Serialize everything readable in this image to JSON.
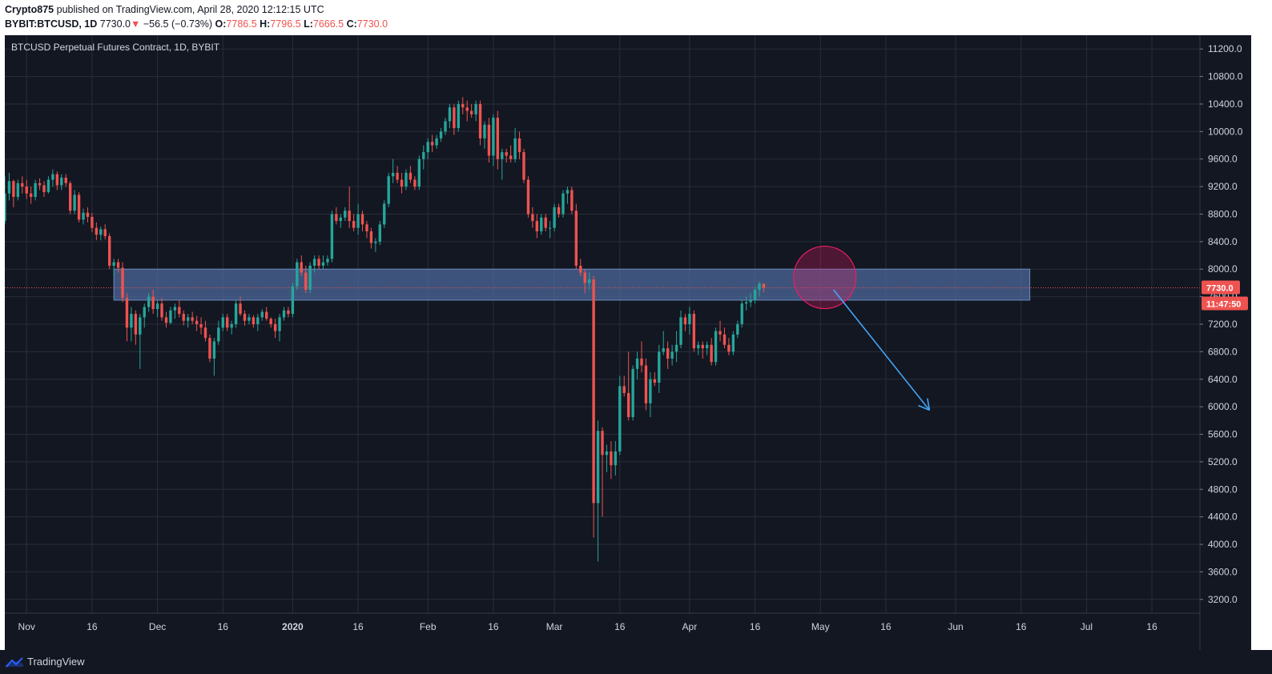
{
  "header": {
    "author": "Crypto875",
    "published_text": " published on TradingView.com, April 28, 2020 12:12:15 UTC",
    "symbol": "BYBIT:BTCUSD, 1D",
    "last": "7730.0",
    "down_arrow": "▼",
    "change": "−56.5 (−0.73%)",
    "o_label": "O:",
    "o_value": "7786.5",
    "h_label": "H:",
    "h_value": "7796.5",
    "l_label": "L:",
    "l_value": "7666.5",
    "c_label": "C:",
    "c_value": "7730.0"
  },
  "footer": {
    "brand": "TradingView"
  },
  "colors": {
    "background": "#131722",
    "grid": "#2a2e39",
    "up": "#26a69a",
    "down": "#ef5350",
    "zone": "#4f6b9e",
    "circle": "#e91e63",
    "arrow": "#42a5f5"
  },
  "chart_data": {
    "type": "candlestick",
    "title": "BTCUSD Perpetual Futures Contract, 1D, BYBIT",
    "symbol": "BYBIT:BTCUSD",
    "interval": "1D",
    "ylim": [
      3000,
      11400
    ],
    "y_ticks": [
      "11200.0",
      "10800.0",
      "10400.0",
      "10000.0",
      "9600.0",
      "9200.0",
      "8800.0",
      "8400.0",
      "8000.0",
      "7600.0",
      "7200.0",
      "6800.0",
      "6400.0",
      "6000.0",
      "5600.0",
      "5200.0",
      "4800.0",
      "4400.0",
      "4000.0",
      "3600.0",
      "3200.0"
    ],
    "x_ticks": [
      {
        "label": "Nov",
        "day": 0
      },
      {
        "label": "16",
        "day": 15
      },
      {
        "label": "Dec",
        "day": 30
      },
      {
        "label": "16",
        "day": 45
      },
      {
        "label": "2020",
        "day": 61
      },
      {
        "label": "16",
        "day": 76
      },
      {
        "label": "Feb",
        "day": 92
      },
      {
        "label": "16",
        "day": 107
      },
      {
        "label": "Mar",
        "day": 121
      },
      {
        "label": "16",
        "day": 136
      },
      {
        "label": "Apr",
        "day": 152
      },
      {
        "label": "16",
        "day": 167
      },
      {
        "label": "May",
        "day": 182
      },
      {
        "label": "16",
        "day": 197
      },
      {
        "label": "Jun",
        "day": 213
      },
      {
        "label": "16",
        "day": 228
      },
      {
        "label": "Jul",
        "day": 243
      },
      {
        "label": "16",
        "day": 258
      }
    ],
    "day_range": [
      -5,
      269
    ],
    "start_day": -5,
    "ohlc": [
      [
        8700,
        9350,
        8650,
        9100
      ],
      [
        9100,
        9400,
        9000,
        9280
      ],
      [
        9280,
        9300,
        8900,
        9050
      ],
      [
        9050,
        9300,
        9000,
        9250
      ],
      [
        9250,
        9350,
        9100,
        9200
      ],
      [
        9200,
        9300,
        9020,
        9100
      ],
      [
        9100,
        9200,
        8950,
        9050
      ],
      [
        9050,
        9300,
        9000,
        9250
      ],
      [
        9250,
        9320,
        9150,
        9220
      ],
      [
        9220,
        9280,
        9050,
        9120
      ],
      [
        9120,
        9350,
        9100,
        9300
      ],
      [
        9300,
        9450,
        9200,
        9380
      ],
      [
        9380,
        9420,
        9150,
        9220
      ],
      [
        9220,
        9380,
        9150,
        9330
      ],
      [
        9330,
        9380,
        9200,
        9250
      ],
      [
        9250,
        9280,
        8800,
        8850
      ],
      [
        8850,
        9150,
        8800,
        9080
      ],
      [
        9080,
        9120,
        8680,
        8720
      ],
      [
        8720,
        8880,
        8650,
        8820
      ],
      [
        8820,
        8900,
        8680,
        8760
      ],
      [
        8760,
        8820,
        8540,
        8600
      ],
      [
        8600,
        8680,
        8420,
        8500
      ],
      [
        8500,
        8620,
        8420,
        8580
      ],
      [
        8580,
        8650,
        8430,
        8480
      ],
      [
        8480,
        8520,
        8000,
        8050
      ],
      [
        8050,
        8150,
        7900,
        8100
      ],
      [
        8100,
        8150,
        7950,
        8020
      ],
      [
        8020,
        8100,
        7520,
        7580
      ],
      [
        7580,
        7650,
        6950,
        7150
      ],
      [
        7150,
        7450,
        6950,
        7350
      ],
      [
        7350,
        7400,
        6900,
        7050
      ],
      [
        7050,
        7350,
        6550,
        7300
      ],
      [
        7300,
        7500,
        7150,
        7450
      ],
      [
        7450,
        7650,
        7380,
        7600
      ],
      [
        7600,
        7700,
        7350,
        7420
      ],
      [
        7420,
        7550,
        7300,
        7500
      ],
      [
        7500,
        7580,
        7250,
        7300
      ],
      [
        7300,
        7380,
        7150,
        7220
      ],
      [
        7220,
        7450,
        7200,
        7400
      ],
      [
        7400,
        7500,
        7280,
        7450
      ],
      [
        7450,
        7550,
        7300,
        7350
      ],
      [
        7350,
        7400,
        7180,
        7250
      ],
      [
        7250,
        7350,
        7150,
        7300
      ],
      [
        7300,
        7380,
        7200,
        7250
      ],
      [
        7250,
        7320,
        7100,
        7200
      ],
      [
        7200,
        7300,
        7050,
        7150
      ],
      [
        7150,
        7250,
        6950,
        7000
      ],
      [
        7000,
        7050,
        6650,
        6700
      ],
      [
        6700,
        7000,
        6450,
        6950
      ],
      [
        6950,
        7250,
        6900,
        7150
      ],
      [
        7150,
        7350,
        7100,
        7300
      ],
      [
        7300,
        7350,
        7100,
        7150
      ],
      [
        7150,
        7250,
        7050,
        7200
      ],
      [
        7200,
        7550,
        7150,
        7500
      ],
      [
        7500,
        7600,
        7320,
        7350
      ],
      [
        7350,
        7400,
        7180,
        7250
      ],
      [
        7250,
        7350,
        7200,
        7300
      ],
      [
        7300,
        7330,
        7150,
        7200
      ],
      [
        7200,
        7350,
        7100,
        7300
      ],
      [
        7300,
        7420,
        7250,
        7380
      ],
      [
        7380,
        7450,
        7250,
        7280
      ],
      [
        7280,
        7300,
        7150,
        7200
      ],
      [
        7200,
        7280,
        7000,
        7100
      ],
      [
        7100,
        7350,
        6950,
        7300
      ],
      [
        7300,
        7450,
        7250,
        7400
      ],
      [
        7400,
        7450,
        7300,
        7350
      ],
      [
        7350,
        7800,
        7300,
        7750
      ],
      [
        7750,
        8150,
        7700,
        8100
      ],
      [
        8100,
        8200,
        7900,
        7950
      ],
      [
        7950,
        8050,
        7650,
        7700
      ],
      [
        7700,
        8100,
        7650,
        8050
      ],
      [
        8050,
        8200,
        7950,
        8150
      ],
      [
        8150,
        8200,
        8000,
        8050
      ],
      [
        8050,
        8200,
        8000,
        8100
      ],
      [
        8100,
        8200,
        8050,
        8150
      ],
      [
        8150,
        8850,
        8100,
        8800
      ],
      [
        8800,
        8900,
        8650,
        8700
      ],
      [
        8700,
        8800,
        8600,
        8750
      ],
      [
        8750,
        8900,
        8700,
        8850
      ],
      [
        8850,
        9200,
        8600,
        8700
      ],
      [
        8700,
        8800,
        8550,
        8600
      ],
      [
        8600,
        8950,
        8500,
        8800
      ],
      [
        8800,
        8850,
        8550,
        8650
      ],
      [
        8650,
        8700,
        8450,
        8550
      ],
      [
        8550,
        8600,
        8300,
        8380
      ],
      [
        8380,
        8450,
        8250,
        8400
      ],
      [
        8400,
        8700,
        8350,
        8650
      ],
      [
        8650,
        9000,
        8600,
        8950
      ],
      [
        8950,
        9400,
        8900,
        9350
      ],
      [
        9350,
        9600,
        9250,
        9400
      ],
      [
        9400,
        9500,
        9250,
        9300
      ],
      [
        9300,
        9400,
        9100,
        9200
      ],
      [
        9200,
        9450,
        9150,
        9400
      ],
      [
        9400,
        9500,
        9250,
        9300
      ],
      [
        9300,
        9350,
        9150,
        9200
      ],
      [
        9200,
        9650,
        9150,
        9600
      ],
      [
        9600,
        9800,
        9450,
        9700
      ],
      [
        9700,
        9900,
        9600,
        9850
      ],
      [
        9850,
        9950,
        9700,
        9800
      ],
      [
        9800,
        9950,
        9750,
        9900
      ],
      [
        9900,
        10050,
        9850,
        10000
      ],
      [
        10000,
        10200,
        9950,
        10150
      ],
      [
        10150,
        10400,
        10050,
        10350
      ],
      [
        10350,
        10400,
        9950,
        10050
      ],
      [
        10050,
        10450,
        10000,
        10400
      ],
      [
        10400,
        10500,
        10250,
        10350
      ],
      [
        10350,
        10450,
        10150,
        10300
      ],
      [
        10300,
        10400,
        10200,
        10250
      ],
      [
        10250,
        10450,
        10150,
        10400
      ],
      [
        10400,
        10450,
        9800,
        9900
      ],
      [
        9900,
        10150,
        9750,
        10100
      ],
      [
        10100,
        10200,
        9550,
        9650
      ],
      [
        9650,
        10250,
        9500,
        10200
      ],
      [
        10200,
        10300,
        9450,
        9600
      ],
      [
        9600,
        9750,
        9300,
        9700
      ],
      [
        9700,
        9750,
        9550,
        9650
      ],
      [
        9650,
        9800,
        9550,
        9600
      ],
      [
        9600,
        10050,
        9550,
        9900
      ],
      [
        9900,
        10000,
        9600,
        9700
      ],
      [
        9700,
        9750,
        9250,
        9300
      ],
      [
        9300,
        9350,
        8750,
        8800
      ],
      [
        8800,
        8900,
        8600,
        8700
      ],
      [
        8700,
        8800,
        8450,
        8550
      ],
      [
        8550,
        8800,
        8500,
        8750
      ],
      [
        8750,
        8800,
        8550,
        8600
      ],
      [
        8600,
        8700,
        8450,
        8600
      ],
      [
        8600,
        8950,
        8550,
        8900
      ],
      [
        8900,
        8950,
        8750,
        8800
      ],
      [
        8800,
        9150,
        8750,
        9100
      ],
      [
        9100,
        9200,
        8950,
        9150
      ],
      [
        9150,
        9200,
        8800,
        8850
      ],
      [
        8850,
        8950,
        8000,
        8050
      ],
      [
        8050,
        8150,
        7900,
        7950
      ],
      [
        7950,
        8000,
        7650,
        7800
      ],
      [
        7800,
        7950,
        7700,
        7850
      ],
      [
        7850,
        7900,
        4100,
        4600
      ],
      [
        4600,
        5800,
        3750,
        5650
      ],
      [
        5650,
        5700,
        4400,
        5300
      ],
      [
        5300,
        5450,
        5050,
        5350
      ],
      [
        5350,
        5500,
        4950,
        5150
      ],
      [
        5150,
        5500,
        5000,
        5350
      ],
      [
        5350,
        6450,
        5300,
        6300
      ],
      [
        6300,
        6450,
        6150,
        6200
      ],
      [
        6200,
        6800,
        5800,
        5850
      ],
      [
        5850,
        6600,
        5800,
        6550
      ],
      [
        6550,
        6800,
        6400,
        6700
      ],
      [
        6700,
        6950,
        6500,
        6600
      ],
      [
        6600,
        6700,
        5950,
        6050
      ],
      [
        6050,
        6500,
        5850,
        6400
      ],
      [
        6400,
        6500,
        6300,
        6350
      ],
      [
        6350,
        6900,
        6200,
        6800
      ],
      [
        6800,
        7100,
        6750,
        6850
      ],
      [
        6850,
        6950,
        6550,
        6700
      ],
      [
        6700,
        6900,
        6600,
        6800
      ],
      [
        6800,
        7100,
        6650,
        6900
      ],
      [
        6900,
        7400,
        6850,
        7300
      ],
      [
        7300,
        7350,
        7100,
        7200
      ],
      [
        7200,
        7450,
        7050,
        7350
      ],
      [
        7350,
        7400,
        6800,
        6850
      ],
      [
        6850,
        6950,
        6750,
        6900
      ],
      [
        6900,
        6950,
        6700,
        6850
      ],
      [
        6850,
        6950,
        6750,
        6900
      ],
      [
        6900,
        7000,
        6600,
        6650
      ],
      [
        6650,
        7150,
        6600,
        7100
      ],
      [
        7100,
        7250,
        6950,
        7050
      ],
      [
        7050,
        7150,
        6850,
        6900
      ],
      [
        6900,
        7000,
        6750,
        6800
      ],
      [
        6800,
        7100,
        6750,
        7050
      ],
      [
        7050,
        7250,
        7000,
        7200
      ],
      [
        7200,
        7550,
        7150,
        7500
      ],
      [
        7500,
        7600,
        7400,
        7520
      ],
      [
        7520,
        7650,
        7450,
        7550
      ],
      [
        7550,
        7750,
        7500,
        7700
      ],
      [
        7700,
        7820,
        7600,
        7790
      ],
      [
        7786.5,
        7796.5,
        7666.5,
        7730
      ]
    ],
    "annotations": {
      "resistance_zone": [
        7550,
        8000
      ],
      "circle_center": {
        "day": 183,
        "price": 7880
      },
      "arrow_from": {
        "day": 185,
        "price": 7700
      },
      "arrow_to": {
        "day": 207,
        "price": 5950
      }
    },
    "last_price_label": "7730.0",
    "countdown_label": "11:47:50"
  }
}
